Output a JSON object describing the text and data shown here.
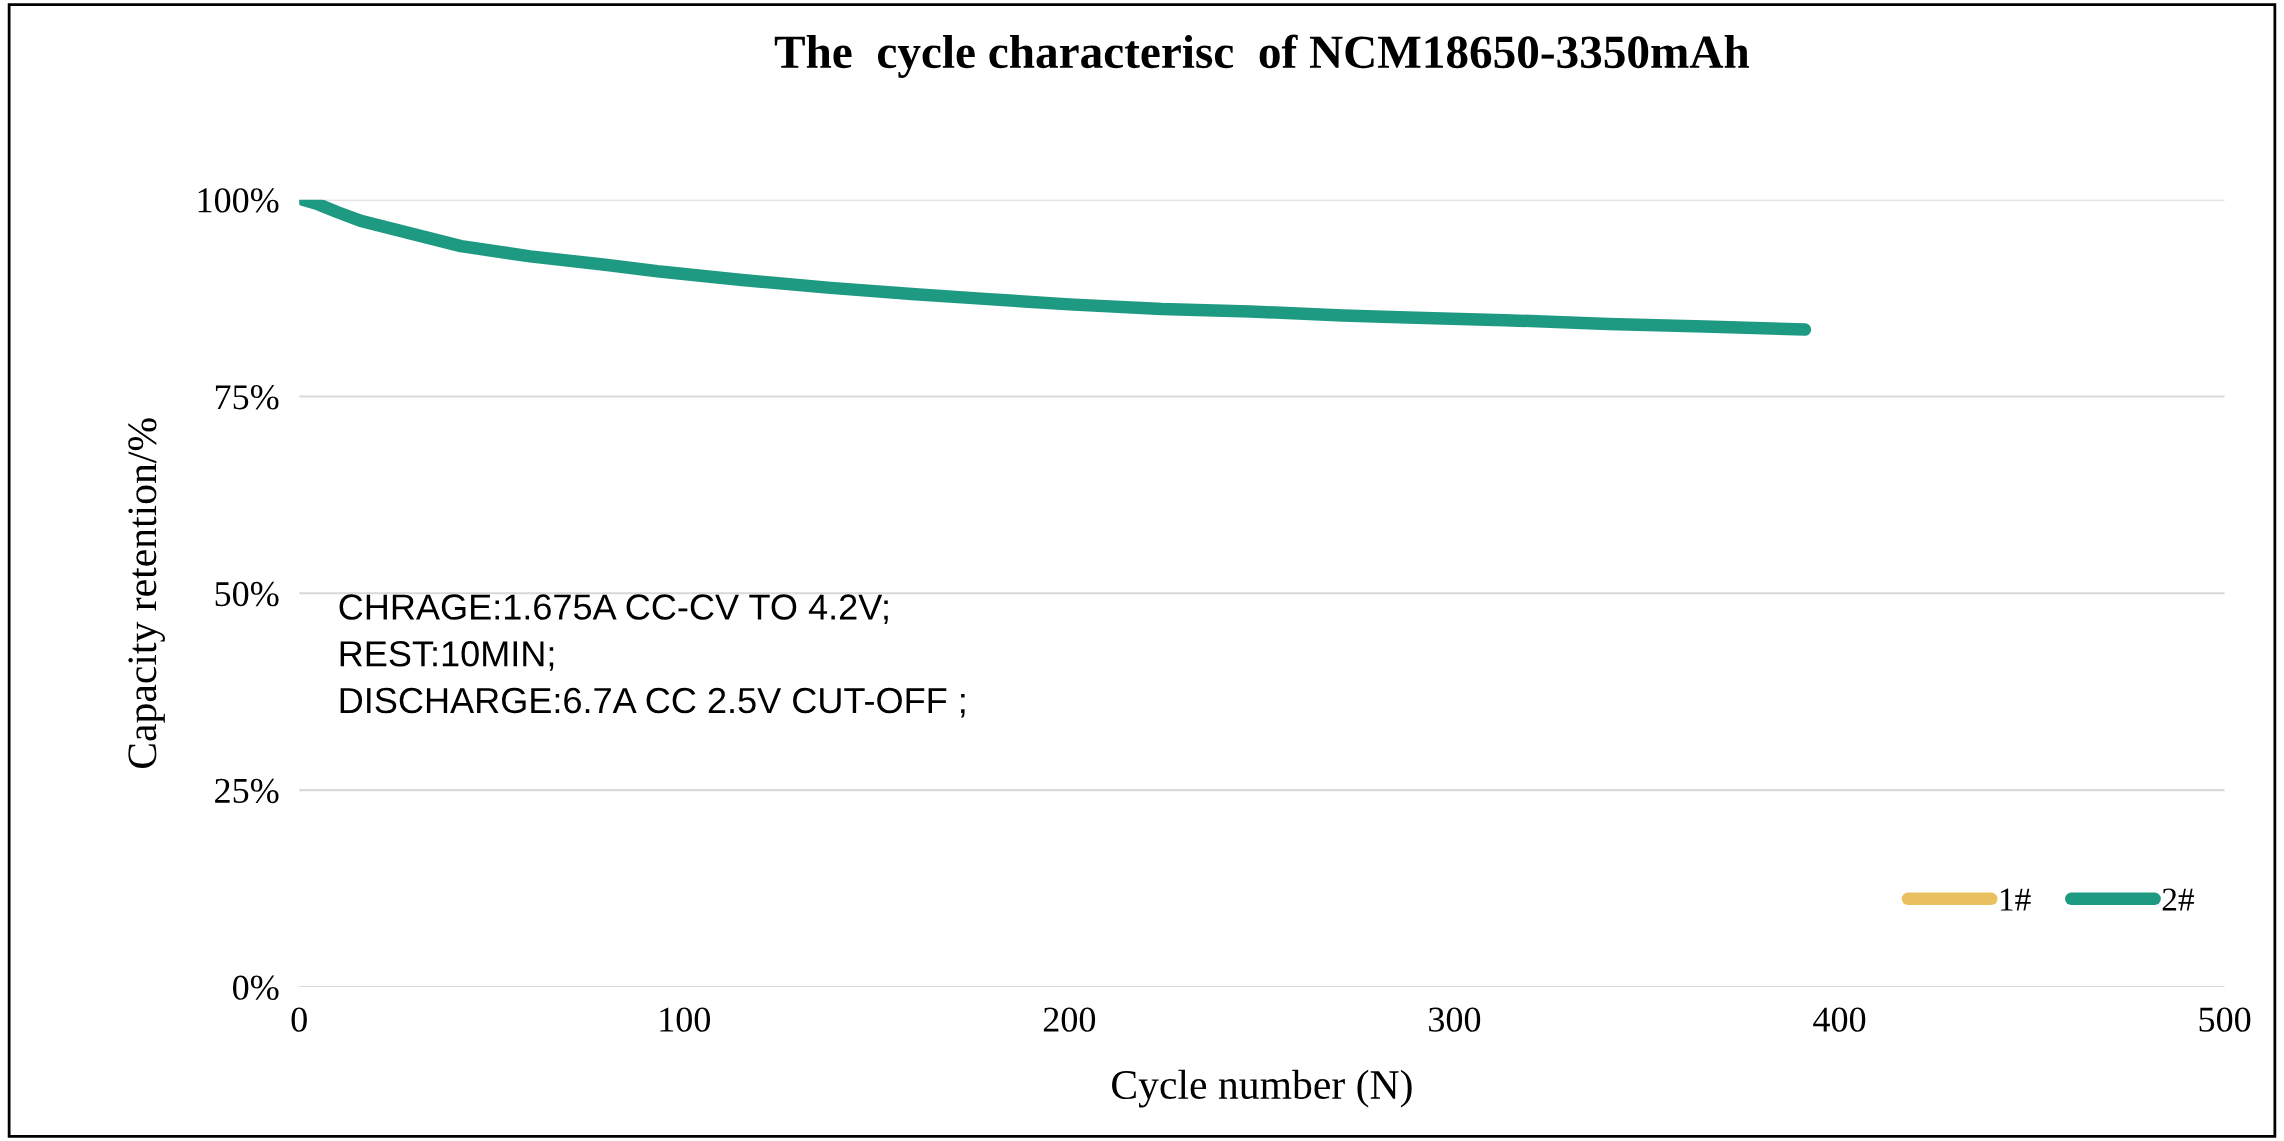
{
  "chart_data": {
    "type": "line",
    "title": "The  cycle characterisc  of NCM18650-3350mAh",
    "xlabel": "Cycle number (N)",
    "ylabel": "Capacity retention/%",
    "x": [
      1,
      5,
      10,
      16,
      25,
      42,
      60,
      80,
      93,
      115,
      138,
      160,
      178,
      200,
      224,
      247,
      271,
      290,
      313,
      340,
      365,
      391
    ],
    "series": [
      {
        "name": "1#",
        "color": "#e8c060",
        "values": [
          null,
          null,
          null,
          null,
          null,
          null,
          null,
          null,
          null,
          null,
          null,
          null,
          null,
          null,
          null,
          null,
          null,
          null,
          null,
          null,
          null,
          null
        ]
      },
      {
        "name": "2#",
        "color": "#1f9a82",
        "values": [
          100,
          99.4,
          98.4,
          97.3,
          96.2,
          94.1,
          92.8,
          91.7,
          90.9,
          89.8,
          88.8,
          88.0,
          87.4,
          86.7,
          86.1,
          85.8,
          85.3,
          85.0,
          84.7,
          84.2,
          83.9,
          83.5
        ]
      }
    ],
    "xlim": [
      0,
      500
    ],
    "xticks": [
      0,
      100,
      200,
      300,
      400,
      500
    ],
    "ylim": [
      0,
      100
    ],
    "yticks": [
      {
        "value": 0,
        "label": "0%"
      },
      {
        "value": 25,
        "label": "25%"
      },
      {
        "value": 50,
        "label": "50%"
      },
      {
        "value": 75,
        "label": "75%"
      },
      {
        "value": 100,
        "label": "100%"
      }
    ],
    "grid": "y",
    "legend": "bottom right",
    "marker": "none",
    "line_style": "solid",
    "annotations": [
      "CHRAGE:1.675A CC-CV TO 4.2V;\nREST:10MIN;\nDISCHARGE:6.7A CC 2.5V CUT-OFF ;"
    ]
  }
}
